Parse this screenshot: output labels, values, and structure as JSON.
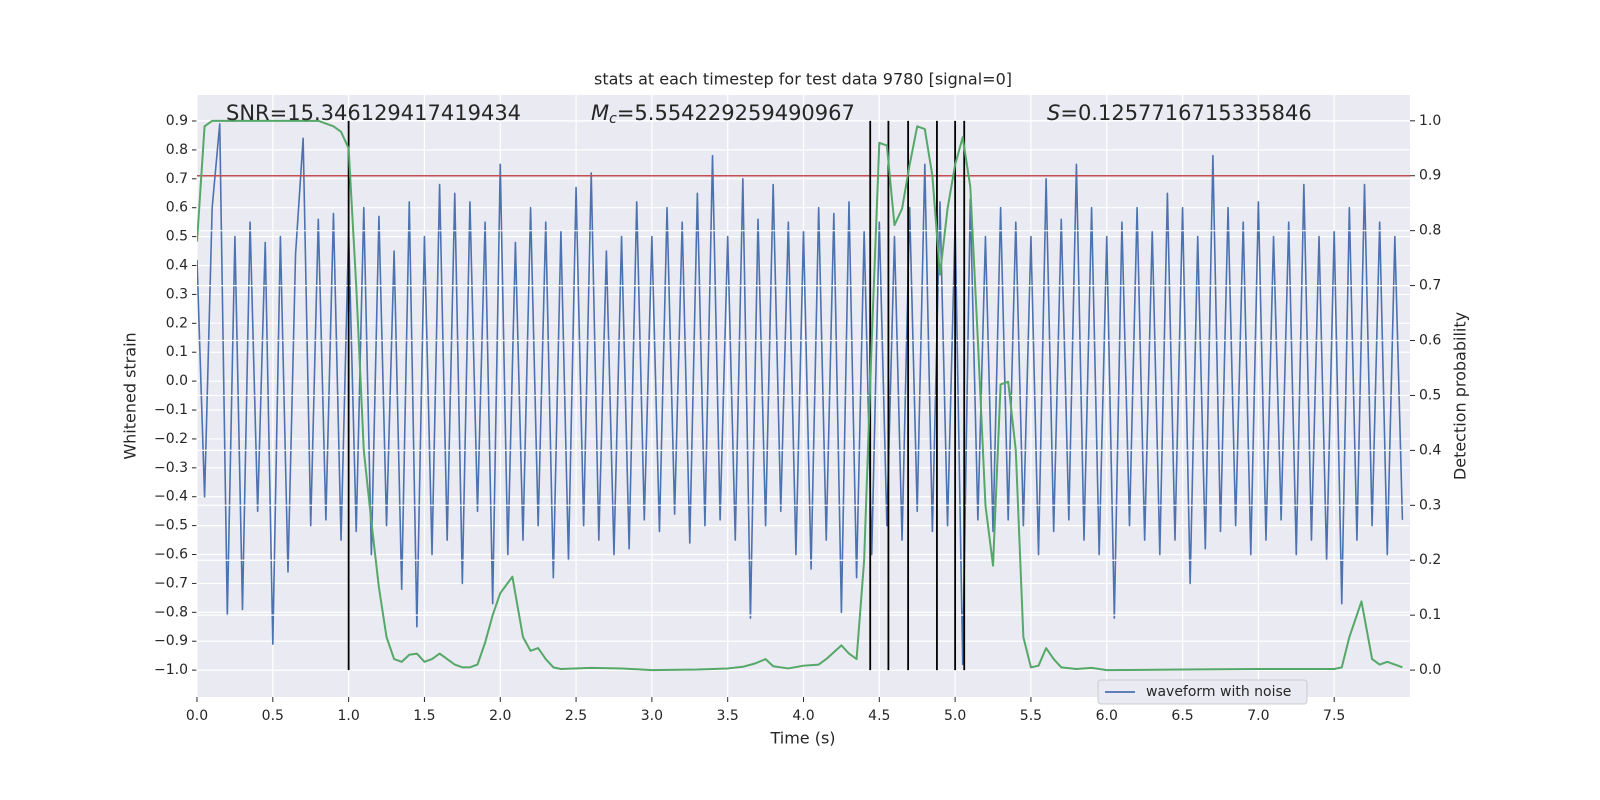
{
  "chart_data": {
    "type": "line",
    "title": "stats at each timestep for test data 9780 [signal=0]",
    "xlabel": "Time (s)",
    "ylabel": "Whitened strain",
    "y2label": "Detection probability",
    "annotations": [
      {
        "text": "SNR=15.346129417419434"
      },
      {
        "symbol": "M",
        "subscript": "c",
        "text": "=5.554229259490967"
      },
      {
        "symbol": "S",
        "text": "=0.1257716715335846"
      }
    ],
    "xlim": [
      0,
      8.0
    ],
    "xticks": [
      {
        "value": 0,
        "label": "0.0"
      },
      {
        "value": 0.5,
        "label": "0.5"
      },
      {
        "value": 1,
        "label": "1.0"
      },
      {
        "value": 1.5,
        "label": "1.5"
      },
      {
        "value": 2,
        "label": "2.0"
      },
      {
        "value": 2.5,
        "label": "2.5"
      },
      {
        "value": 3,
        "label": "3.0"
      },
      {
        "value": 3.5,
        "label": "3.5"
      },
      {
        "value": 4,
        "label": "4.0"
      },
      {
        "value": 4.5,
        "label": "4.5"
      },
      {
        "value": 5,
        "label": "5.0"
      },
      {
        "value": 5.5,
        "label": "5.5"
      },
      {
        "value": 6,
        "label": "6.0"
      },
      {
        "value": 6.5,
        "label": "6.5"
      },
      {
        "value": 7,
        "label": "7.0"
      },
      {
        "value": 7.5,
        "label": "7.5"
      }
    ],
    "ylim": [
      -1.093,
      0.99
    ],
    "yticks": [
      {
        "value": -1.0,
        "label": "−1.0"
      },
      {
        "value": -0.9,
        "label": "−0.9"
      },
      {
        "value": -0.8,
        "label": "−0.8"
      },
      {
        "value": -0.7,
        "label": "−0.7"
      },
      {
        "value": -0.6,
        "label": "−0.6"
      },
      {
        "value": -0.5,
        "label": "−0.5"
      },
      {
        "value": -0.4,
        "label": "−0.4"
      },
      {
        "value": -0.3,
        "label": "−0.3"
      },
      {
        "value": -0.2,
        "label": "−0.2"
      },
      {
        "value": -0.1,
        "label": "−0.1"
      },
      {
        "value": 0,
        "label": "0.0"
      },
      {
        "value": 0.1,
        "label": "0.1"
      },
      {
        "value": 0.2,
        "label": "0.2"
      },
      {
        "value": 0.3,
        "label": "0.3"
      },
      {
        "value": 0.4,
        "label": "0.4"
      },
      {
        "value": 0.5,
        "label": "0.5"
      },
      {
        "value": 0.6,
        "label": "0.6"
      },
      {
        "value": 0.7,
        "label": "0.7"
      },
      {
        "value": 0.8,
        "label": "0.8"
      },
      {
        "value": 0.9,
        "label": "0.9"
      }
    ],
    "y2lim": [
      -0.049,
      1.047
    ],
    "y2ticks": [
      {
        "value": 0,
        "label": "0.0"
      },
      {
        "value": 0.1,
        "label": "0.1"
      },
      {
        "value": 0.2,
        "label": "0.2"
      },
      {
        "value": 0.3,
        "label": "0.3"
      },
      {
        "value": 0.4,
        "label": "0.4"
      },
      {
        "value": 0.5,
        "label": "0.5"
      },
      {
        "value": 0.6,
        "label": "0.6"
      },
      {
        "value": 0.7,
        "label": "0.7"
      },
      {
        "value": 0.8,
        "label": "0.8"
      },
      {
        "value": 0.9,
        "label": "0.9"
      },
      {
        "value": 1,
        "label": "1.0"
      }
    ],
    "grid": true,
    "legend": "lower right",
    "series": [
      {
        "name": "waveform with noise",
        "color": "#4c72b0",
        "x": [
          0,
          0.05,
          0.1,
          0.15,
          0.2,
          0.25,
          0.3,
          0.35,
          0.4,
          0.45,
          0.5,
          0.55,
          0.6,
          0.65,
          0.7,
          0.75,
          0.8,
          0.85,
          0.9,
          0.95,
          1,
          1.05,
          1.1,
          1.15,
          1.2,
          1.25,
          1.3,
          1.35,
          1.4,
          1.45,
          1.5,
          1.55,
          1.6,
          1.65,
          1.7,
          1.75,
          1.8,
          1.85,
          1.9,
          1.95,
          2,
          2.05,
          2.1,
          2.15,
          2.2,
          2.25,
          2.3,
          2.35,
          2.4,
          2.45,
          2.5,
          2.55,
          2.6,
          2.65,
          2.7,
          2.75,
          2.8,
          2.85,
          2.9,
          2.95,
          3,
          3.05,
          3.1,
          3.15,
          3.2,
          3.25,
          3.3,
          3.35,
          3.4,
          3.45,
          3.5,
          3.55,
          3.6,
          3.65,
          3.7,
          3.75,
          3.8,
          3.85,
          3.9,
          3.95,
          4,
          4.05,
          4.1,
          4.15,
          4.2,
          4.25,
          4.3,
          4.35,
          4.4,
          4.45,
          4.5,
          4.55,
          4.6,
          4.65,
          4.7,
          4.75,
          4.8,
          4.85,
          4.9,
          4.95,
          5,
          5.05,
          5.1,
          5.15,
          5.2,
          5.25,
          5.3,
          5.35,
          5.4,
          5.45,
          5.5,
          5.55,
          5.6,
          5.65,
          5.7,
          5.75,
          5.8,
          5.85,
          5.9,
          5.95,
          6,
          6.05,
          6.1,
          6.15,
          6.2,
          6.25,
          6.3,
          6.35,
          6.4,
          6.45,
          6.5,
          6.55,
          6.6,
          6.65,
          6.7,
          6.75,
          6.8,
          6.85,
          6.9,
          6.95,
          7,
          7.05,
          7.1,
          7.15,
          7.2,
          7.25,
          7.3,
          7.35,
          7.4,
          7.45,
          7.5,
          7.55,
          7.6,
          7.65,
          7.7,
          7.75,
          7.8,
          7.85,
          7.9,
          7.95
        ],
        "values": [
          0.42,
          -0.4,
          0.6,
          0.89,
          -0.81,
          0.5,
          -0.79,
          0.55,
          -0.45,
          0.48,
          -0.91,
          0.5,
          -0.66,
          0.44,
          0.84,
          -0.5,
          0.56,
          -0.48,
          0.58,
          -0.55,
          0.52,
          -0.52,
          0.6,
          -0.6,
          0.57,
          -0.5,
          0.45,
          -0.72,
          0.62,
          -0.85,
          0.5,
          -0.6,
          0.68,
          -0.55,
          0.65,
          -0.7,
          0.62,
          -0.45,
          0.55,
          -0.77,
          0.75,
          -0.6,
          0.48,
          -0.55,
          0.6,
          -0.5,
          0.55,
          -0.68,
          0.52,
          -0.62,
          0.67,
          -0.5,
          0.72,
          -0.55,
          0.45,
          -0.6,
          0.5,
          -0.58,
          0.62,
          -0.48,
          0.5,
          -0.52,
          0.6,
          -0.46,
          0.55,
          -0.56,
          0.65,
          -0.5,
          0.78,
          -0.48,
          0.5,
          -0.55,
          0.7,
          -0.82,
          0.56,
          -0.5,
          0.68,
          -0.45,
          0.55,
          -0.6,
          0.52,
          -0.65,
          0.6,
          -0.55,
          0.58,
          -0.8,
          0.62,
          -0.68,
          0.52,
          -0.6,
          0.55,
          -0.5,
          0.5,
          -0.55,
          0.6,
          -0.45,
          0.75,
          -0.52,
          0.62,
          -0.5,
          0.55,
          -0.98,
          0.63,
          -0.48,
          0.5,
          -0.52,
          0.6,
          -0.48,
          0.55,
          -0.5,
          0.5,
          -0.6,
          0.7,
          -0.52,
          0.56,
          -0.48,
          0.75,
          -0.55,
          0.6,
          -0.6,
          0.5,
          -0.82,
          0.55,
          -0.5,
          0.6,
          -0.55,
          0.52,
          -0.6,
          0.65,
          -0.55,
          0.6,
          -0.7,
          0.5,
          -0.58,
          0.78,
          -0.52,
          0.6,
          -0.5,
          0.55,
          -0.6,
          0.62,
          -0.55,
          0.5,
          -0.48,
          0.55,
          -0.6,
          0.68,
          -0.55,
          0.5,
          -0.62,
          0.52,
          -0.77,
          0.6,
          -0.55,
          0.68,
          -0.5,
          0.55,
          -0.6,
          0.5,
          -0.48
        ]
      },
      {
        "color": "#55a868",
        "axis": "y2",
        "x": [
          0,
          0.05,
          0.1,
          0.3,
          0.5,
          0.8,
          0.9,
          0.95,
          1,
          1.05,
          1.1,
          1.15,
          1.2,
          1.25,
          1.3,
          1.35,
          1.4,
          1.45,
          1.5,
          1.55,
          1.6,
          1.65,
          1.7,
          1.75,
          1.8,
          1.85,
          1.9,
          1.95,
          2,
          2.08,
          2.15,
          2.2,
          2.25,
          2.3,
          2.35,
          2.4,
          2.6,
          2.8,
          3,
          3.3,
          3.5,
          3.6,
          3.68,
          3.75,
          3.8,
          3.9,
          4,
          4.1,
          4.15,
          4.25,
          4.3,
          4.35,
          4.4,
          4.45,
          4.5,
          4.55,
          4.6,
          4.65,
          4.7,
          4.75,
          4.8,
          4.85,
          4.9,
          4.95,
          5,
          5.05,
          5.1,
          5.15,
          5.2,
          5.25,
          5.3,
          5.35,
          5.4,
          5.45,
          5.5,
          5.55,
          5.6,
          5.65,
          5.7,
          5.8,
          5.9,
          6,
          6.5,
          7,
          7.5,
          7.55,
          7.6,
          7.68,
          7.75,
          7.8,
          7.85,
          7.9,
          7.95
        ],
        "values": [
          0.78,
          0.99,
          1.0,
          1.0,
          1.0,
          1.0,
          0.99,
          0.98,
          0.95,
          0.7,
          0.4,
          0.27,
          0.15,
          0.06,
          0.02,
          0.015,
          0.028,
          0.03,
          0.015,
          0.02,
          0.03,
          0.02,
          0.01,
          0.005,
          0.005,
          0.01,
          0.05,
          0.1,
          0.14,
          0.17,
          0.06,
          0.035,
          0.04,
          0.02,
          0.005,
          0.002,
          0.004,
          0.003,
          0.0,
          0.001,
          0.003,
          0.006,
          0.012,
          0.02,
          0.007,
          0.003,
          0.008,
          0.01,
          0.02,
          0.045,
          0.03,
          0.02,
          0.2,
          0.6,
          0.96,
          0.955,
          0.81,
          0.84,
          0.92,
          0.99,
          0.985,
          0.9,
          0.72,
          0.84,
          0.92,
          0.97,
          0.88,
          0.6,
          0.3,
          0.19,
          0.52,
          0.525,
          0.4,
          0.06,
          0.005,
          0.008,
          0.04,
          0.02,
          0.005,
          0.002,
          0.004,
          0.0,
          0.001,
          0.002,
          0.002,
          0.005,
          0.06,
          0.125,
          0.02,
          0.01,
          0.015,
          0.01,
          0.005
        ]
      }
    ],
    "hlines": [
      {
        "y": 0.9,
        "axis": "y2",
        "color": "#c44e52"
      }
    ],
    "vlines": {
      "color": "#000000",
      "y2range": [
        0,
        1
      ],
      "x": [
        1.0,
        4.44,
        4.56,
        4.69,
        4.88,
        5.0,
        5.06
      ]
    }
  }
}
